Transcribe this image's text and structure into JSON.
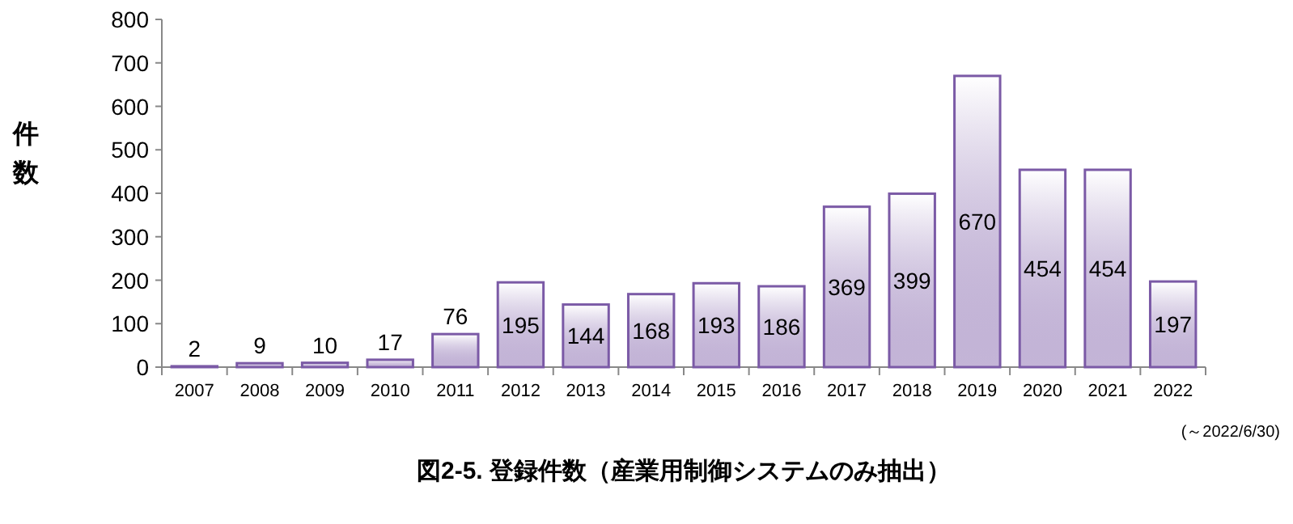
{
  "chart_data": {
    "type": "bar",
    "title": "図2-5. 登録件数（産業用制御システムのみ抽出）",
    "ylabel": "件数",
    "categories": [
      "2007",
      "2008",
      "2009",
      "2010",
      "2011",
      "2012",
      "2013",
      "2014",
      "2015",
      "2016",
      "2017",
      "2018",
      "2019",
      "2020",
      "2021",
      "2022"
    ],
    "values": [
      2,
      9,
      10,
      17,
      76,
      195,
      144,
      168,
      193,
      186,
      369,
      399,
      670,
      454,
      454,
      197
    ],
    "color": "#7b5aa6",
    "ylim": [
      0,
      800
    ],
    "yticks": [
      0,
      100,
      200,
      300,
      400,
      500,
      600,
      700,
      800
    ],
    "data_labels": true,
    "annotations": [
      "(～2022/6/30)"
    ]
  }
}
